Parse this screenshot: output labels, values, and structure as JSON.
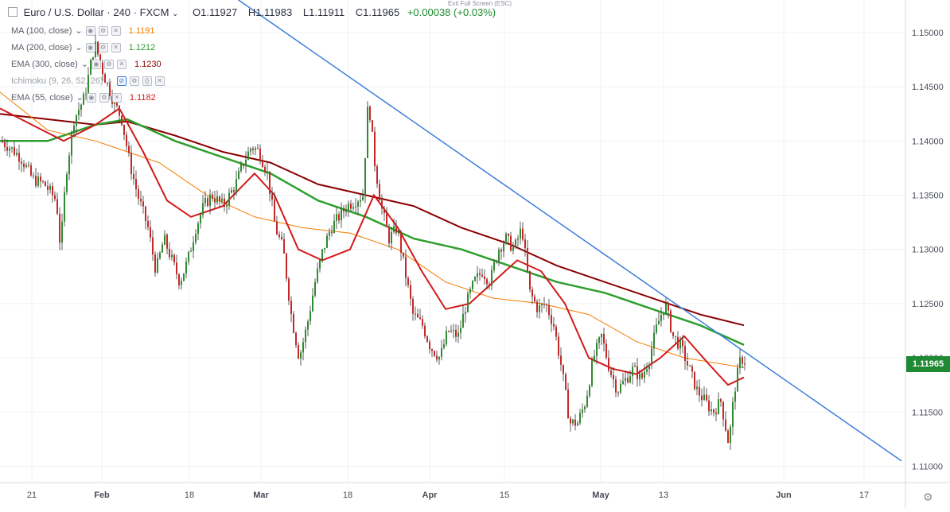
{
  "header": {
    "symbol": "Euro / U.S. Dollar · 240 · FXCM",
    "open": "O1.11927",
    "high": "H1.11983",
    "low": "L1.11911",
    "close": "C1.11965",
    "change": "+0.00038 (+0.03%)",
    "exit_fullscreen": "Exit Full Screen (ESC)"
  },
  "studies": [
    {
      "label": "MA (100, close)",
      "value": "1.1191",
      "color": "#f57c00"
    },
    {
      "label": "MA (200, close)",
      "value": "1.1212",
      "color": "#2e9f2e"
    },
    {
      "label": "EMA (300, close)",
      "value": "1.1230",
      "color": "#8b0000"
    },
    {
      "label": "Ichimoku (9, 26, 52, 26)",
      "value": "",
      "color": "#9aa0aa"
    },
    {
      "label": "EMA (55, close)",
      "value": "1.1182",
      "color": "#d31919"
    }
  ],
  "chart_data": {
    "type": "candlestick",
    "y_ticks": [
      "1.15000",
      "1.14500",
      "1.14000",
      "1.13500",
      "1.13000",
      "1.12500",
      "1.12000",
      "1.11500",
      "1.11000"
    ],
    "x_labels": [
      "21",
      "Feb",
      "18",
      "Mar",
      "18",
      "Apr",
      "15",
      "May",
      "13",
      "Jun",
      "17"
    ],
    "ylim": [
      1.1085,
      1.153
    ],
    "last_price": "1.11965",
    "grid": true,
    "colors": {
      "up": "#2e8b2e",
      "down": "#c62828",
      "ma100": "#f57c00",
      "ma200": "#2e9f2e",
      "ema300": "#8b0000",
      "ema55": "#d31919",
      "trendline": "#3d7fd9"
    },
    "price_path": [
      [
        0,
        1.14
      ],
      [
        10,
        1.1395
      ],
      [
        25,
        1.1385
      ],
      [
        40,
        1.1365
      ],
      [
        55,
        1.136
      ],
      [
        70,
        1.1345
      ],
      [
        75,
        1.13
      ],
      [
        82,
        1.137
      ],
      [
        92,
        1.142
      ],
      [
        105,
        1.144
      ],
      [
        118,
        1.149
      ],
      [
        130,
        1.146
      ],
      [
        140,
        1.144
      ],
      [
        152,
        1.142
      ],
      [
        162,
        1.138
      ],
      [
        172,
        1.135
      ],
      [
        185,
        1.132
      ],
      [
        195,
        1.128
      ],
      [
        205,
        1.131
      ],
      [
        215,
        1.129
      ],
      [
        225,
        1.127
      ],
      [
        235,
        1.129
      ],
      [
        245,
        1.132
      ],
      [
        255,
        1.134
      ],
      [
        265,
        1.135
      ],
      [
        280,
        1.134
      ],
      [
        295,
        1.136
      ],
      [
        305,
        1.138
      ],
      [
        315,
        1.1395
      ],
      [
        325,
        1.139
      ],
      [
        335,
        1.137
      ],
      [
        345,
        1.132
      ],
      [
        355,
        1.13
      ],
      [
        365,
        1.124
      ],
      [
        375,
        1.12
      ],
      [
        385,
        1.123
      ],
      [
        395,
        1.127
      ],
      [
        405,
        1.13
      ],
      [
        415,
        1.132
      ],
      [
        425,
        1.133
      ],
      [
        435,
        1.134
      ],
      [
        445,
        1.1345
      ],
      [
        455,
        1.135
      ],
      [
        462,
        1.144
      ],
      [
        470,
        1.138
      ],
      [
        478,
        1.134
      ],
      [
        488,
        1.131
      ],
      [
        498,
        1.132
      ],
      [
        508,
        1.128
      ],
      [
        518,
        1.124
      ],
      [
        530,
        1.123
      ],
      [
        540,
        1.121
      ],
      [
        552,
        1.12
      ],
      [
        562,
        1.1225
      ],
      [
        575,
        1.122
      ],
      [
        585,
        1.125
      ],
      [
        595,
        1.127
      ],
      [
        605,
        1.128
      ],
      [
        615,
        1.127
      ],
      [
        625,
        1.13
      ],
      [
        635,
        1.131
      ],
      [
        645,
        1.13
      ],
      [
        655,
        1.132
      ],
      [
        665,
        1.126
      ],
      [
        675,
        1.1245
      ],
      [
        685,
        1.125
      ],
      [
        695,
        1.123
      ],
      [
        705,
        1.119
      ],
      [
        715,
        1.114
      ],
      [
        725,
        1.114
      ],
      [
        735,
        1.116
      ],
      [
        745,
        1.12
      ],
      [
        755,
        1.122
      ],
      [
        765,
        1.119
      ],
      [
        775,
        1.117
      ],
      [
        785,
        1.118
      ],
      [
        795,
        1.119
      ],
      [
        805,
        1.118
      ],
      [
        815,
        1.12
      ],
      [
        825,
        1.123
      ],
      [
        835,
        1.125
      ],
      [
        845,
        1.122
      ],
      [
        855,
        1.121
      ],
      [
        865,
        1.119
      ],
      [
        875,
        1.117
      ],
      [
        885,
        1.116
      ],
      [
        895,
        1.115
      ],
      [
        905,
        1.116
      ],
      [
        915,
        1.112
      ],
      [
        922,
        1.117
      ],
      [
        930,
        1.12
      ],
      [
        935,
        1.1197
      ]
    ],
    "ma100": [
      [
        0,
        1.1445
      ],
      [
        60,
        1.141
      ],
      [
        120,
        1.14
      ],
      [
        200,
        1.138
      ],
      [
        260,
        1.135
      ],
      [
        320,
        1.133
      ],
      [
        380,
        1.132
      ],
      [
        440,
        1.1315
      ],
      [
        500,
        1.13
      ],
      [
        560,
        1.127
      ],
      [
        620,
        1.1255
      ],
      [
        680,
        1.125
      ],
      [
        740,
        1.124
      ],
      [
        800,
        1.1215
      ],
      [
        860,
        1.12
      ],
      [
        935,
        1.1191
      ]
    ],
    "ma200": [
      [
        0,
        1.14
      ],
      [
        60,
        1.14
      ],
      [
        120,
        1.1415
      ],
      [
        160,
        1.142
      ],
      [
        220,
        1.14
      ],
      [
        280,
        1.1385
      ],
      [
        340,
        1.137
      ],
      [
        400,
        1.1345
      ],
      [
        460,
        1.133
      ],
      [
        520,
        1.131
      ],
      [
        580,
        1.13
      ],
      [
        640,
        1.1285
      ],
      [
        700,
        1.127
      ],
      [
        760,
        1.126
      ],
      [
        820,
        1.1245
      ],
      [
        880,
        1.123
      ],
      [
        935,
        1.1212
      ]
    ],
    "ema300": [
      [
        0,
        1.1425
      ],
      [
        60,
        1.142
      ],
      [
        120,
        1.1415
      ],
      [
        160,
        1.1418
      ],
      [
        220,
        1.1405
      ],
      [
        280,
        1.139
      ],
      [
        340,
        1.138
      ],
      [
        400,
        1.136
      ],
      [
        460,
        1.135
      ],
      [
        520,
        1.134
      ],
      [
        580,
        1.132
      ],
      [
        640,
        1.1305
      ],
      [
        700,
        1.1285
      ],
      [
        760,
        1.127
      ],
      [
        820,
        1.1255
      ],
      [
        880,
        1.124
      ],
      [
        935,
        1.123
      ]
    ],
    "ema55": [
      [
        0,
        1.143
      ],
      [
        40,
        1.1415
      ],
      [
        80,
        1.14
      ],
      [
        120,
        1.1415
      ],
      [
        150,
        1.143
      ],
      [
        180,
        1.139
      ],
      [
        210,
        1.1345
      ],
      [
        240,
        1.133
      ],
      [
        280,
        1.134
      ],
      [
        320,
        1.137
      ],
      [
        345,
        1.135
      ],
      [
        375,
        1.13
      ],
      [
        405,
        1.129
      ],
      [
        440,
        1.13
      ],
      [
        470,
        1.135
      ],
      [
        500,
        1.132
      ],
      [
        530,
        1.128
      ],
      [
        560,
        1.1245
      ],
      [
        590,
        1.125
      ],
      [
        620,
        1.127
      ],
      [
        650,
        1.129
      ],
      [
        680,
        1.128
      ],
      [
        710,
        1.125
      ],
      [
        740,
        1.12
      ],
      [
        770,
        1.119
      ],
      [
        800,
        1.1185
      ],
      [
        830,
        1.12
      ],
      [
        860,
        1.122
      ],
      [
        890,
        1.1195
      ],
      [
        915,
        1.1175
      ],
      [
        935,
        1.1182
      ]
    ],
    "trendline": [
      [
        290,
        1.1535
      ],
      [
        1133,
        1.1105
      ]
    ]
  }
}
